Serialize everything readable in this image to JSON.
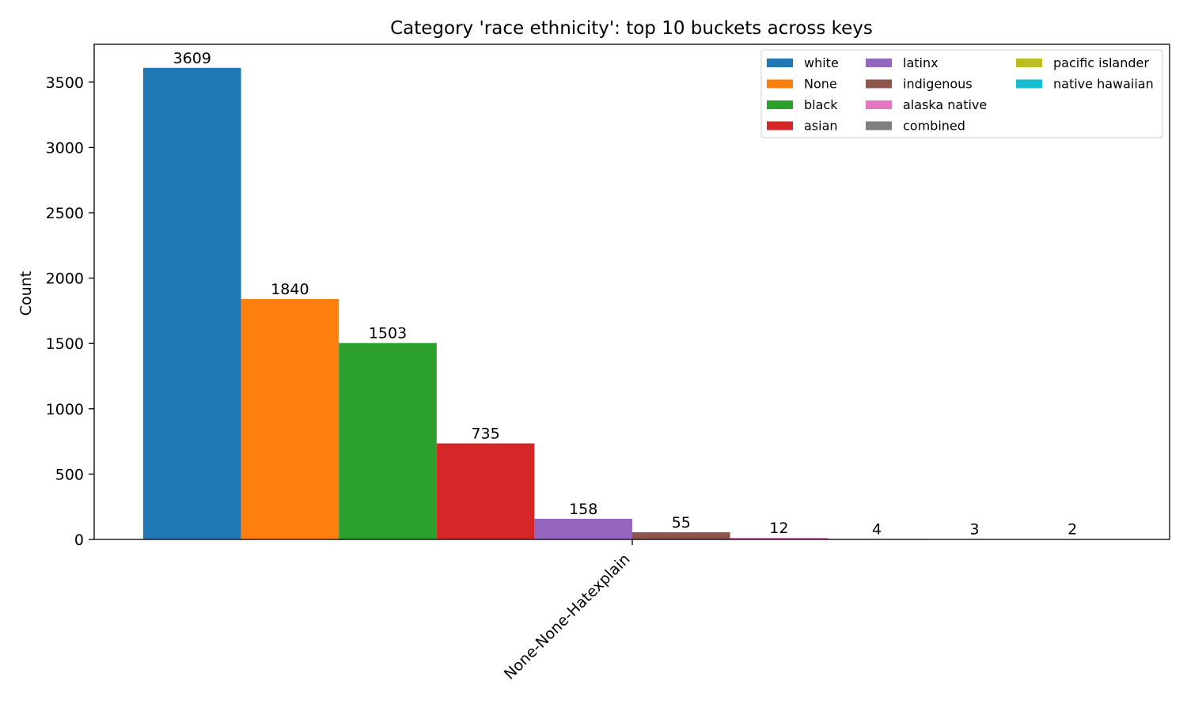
{
  "chart_data": {
    "type": "bar",
    "title": "Category 'race ethnicity': top 10 buckets across keys",
    "xlabel": "",
    "ylabel": "Count",
    "categories": [
      "None-None-Hatexplain"
    ],
    "ylim": [
      0,
      3789.45
    ],
    "yticks": [
      0,
      500,
      1000,
      1500,
      2000,
      2500,
      3000,
      3500
    ],
    "grid": false,
    "legend_position": "top-right",
    "legend_columns": 3,
    "series": [
      {
        "name": "white",
        "values": [
          3609
        ],
        "color": "#1f77b4"
      },
      {
        "name": "None",
        "values": [
          1840
        ],
        "color": "#ff7f0e"
      },
      {
        "name": "black",
        "values": [
          1503
        ],
        "color": "#2ca02c"
      },
      {
        "name": "asian",
        "values": [
          735
        ],
        "color": "#d62728"
      },
      {
        "name": "latinx",
        "values": [
          158
        ],
        "color": "#9467bd"
      },
      {
        "name": "indigenous",
        "values": [
          55
        ],
        "color": "#8c564b"
      },
      {
        "name": "alaska native",
        "values": [
          12
        ],
        "color": "#e377c2"
      },
      {
        "name": "combined",
        "values": [
          4
        ],
        "color": "#7f7f7f"
      },
      {
        "name": "pacific islander",
        "values": [
          3
        ],
        "color": "#bcbd22"
      },
      {
        "name": "native hawaiian",
        "values": [
          2
        ],
        "color": "#17becf"
      }
    ]
  }
}
